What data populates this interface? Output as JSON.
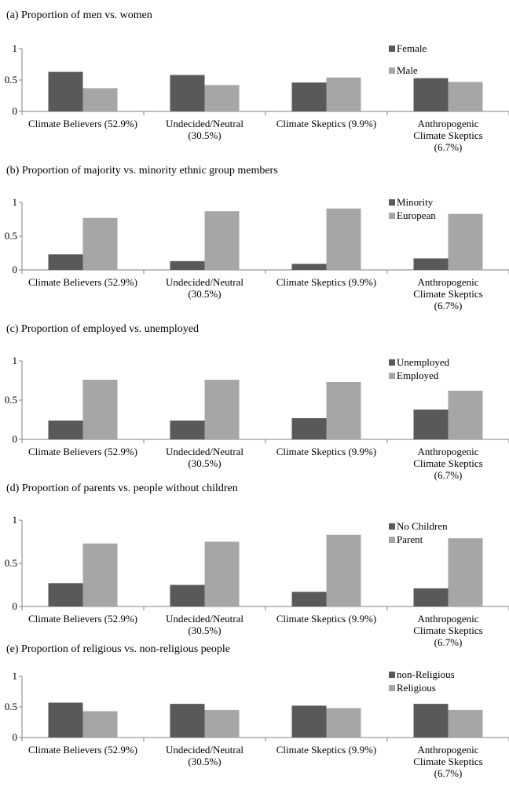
{
  "chart_data": [
    {
      "type": "bar",
      "title": "(a) Proportion of men vs. women",
      "categories": [
        "Climate Believers (52.9%)",
        "Undecided/Neutral (30.5%)",
        "Climate Skeptics (9.9%)",
        "Anthropogenic Climate Skeptics (6.7%)"
      ],
      "series": [
        {
          "name": "Female",
          "color": "#595959",
          "values": [
            0.63,
            0.58,
            0.46,
            0.53
          ]
        },
        {
          "name": "Male",
          "color": "#a6a6a6",
          "values": [
            0.37,
            0.42,
            0.54,
            0.47
          ]
        }
      ],
      "ylim": [
        0,
        1
      ],
      "yticks": [
        0,
        0.5,
        1
      ]
    },
    {
      "type": "bar",
      "title": "(b) Proportion of majority vs. minority ethnic group members",
      "categories": [
        "Climate Believers (52.9%)",
        "Undecided/Neutral (30.5%)",
        "Climate Skeptics (9.9%)",
        "Anthropogenic Climate Skeptics (6.7%)"
      ],
      "series": [
        {
          "name": "Minority",
          "color": "#595959",
          "values": [
            0.23,
            0.13,
            0.09,
            0.17
          ]
        },
        {
          "name": "European",
          "color": "#a6a6a6",
          "values": [
            0.77,
            0.87,
            0.91,
            0.83
          ]
        }
      ],
      "ylim": [
        0,
        1
      ],
      "yticks": [
        0,
        0.5,
        1
      ]
    },
    {
      "type": "bar",
      "title": "(c) Proportion of employed vs. unemployed",
      "categories": [
        "Climate Believers (52.9%)",
        "Undecided/Neutral (30.5%)",
        "Climate Skeptics (9.9%)",
        "Anthropogenic Climate Skeptics (6.7%)"
      ],
      "series": [
        {
          "name": "Unemployed",
          "color": "#595959",
          "values": [
            0.24,
            0.24,
            0.27,
            0.38
          ]
        },
        {
          "name": "Employed",
          "color": "#a6a6a6",
          "values": [
            0.76,
            0.76,
            0.73,
            0.62
          ]
        }
      ],
      "ylim": [
        0,
        1
      ],
      "yticks": [
        0,
        0.5,
        1
      ]
    },
    {
      "type": "bar",
      "title": "(d) Proportion of parents vs. people without children",
      "categories": [
        "Climate Believers (52.9%)",
        "Undecided/Neutral (30.5%)",
        "Climate Skeptics (9.9%)",
        "Anthropogenic Climate Skeptics (6.7%)"
      ],
      "series": [
        {
          "name": "No Children",
          "color": "#595959",
          "values": [
            0.27,
            0.25,
            0.17,
            0.21
          ]
        },
        {
          "name": "Parent",
          "color": "#a6a6a6",
          "values": [
            0.73,
            0.75,
            0.83,
            0.79
          ]
        }
      ],
      "ylim": [
        0,
        1
      ],
      "yticks": [
        0,
        0.5,
        1
      ]
    },
    {
      "type": "bar",
      "title": "(e) Proportion of religious vs. non-religious people",
      "categories": [
        "Climate Believers (52.9%)",
        "Undecided/Neutral (30.5%)",
        "Climate Skeptics (9.9%)",
        "Anthropogenic Climate Skeptics (6.7%)"
      ],
      "series": [
        {
          "name": "non-Religious",
          "color": "#595959",
          "values": [
            0.57,
            0.55,
            0.52,
            0.55
          ]
        },
        {
          "name": "Religious",
          "color": "#a6a6a6",
          "values": [
            0.43,
            0.45,
            0.48,
            0.45
          ]
        }
      ],
      "ylim": [
        0,
        1
      ],
      "yticks": [
        0,
        0.5,
        1
      ]
    }
  ]
}
